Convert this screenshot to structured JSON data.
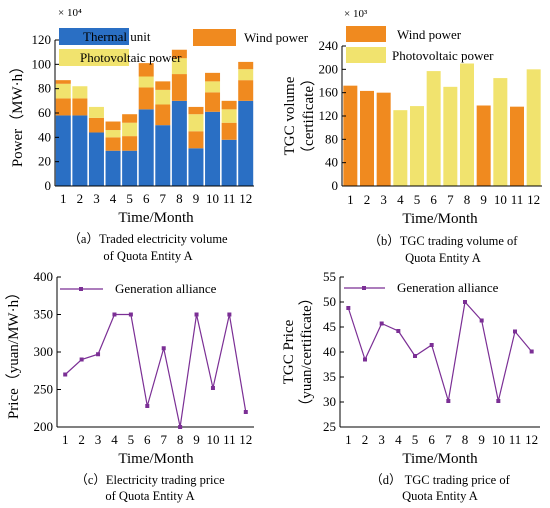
{
  "colors": {
    "thermal": "#2a6fc4",
    "wind": "#f08a1f",
    "pv": "#f1e36e",
    "line": "#7b2f95",
    "axis": "#000000"
  },
  "chart_data": [
    {
      "panel": "a",
      "type": "bar",
      "stacked": true,
      "categories": [
        "1",
        "2",
        "3",
        "4",
        "5",
        "6",
        "7",
        "8",
        "9",
        "10",
        "11",
        "12"
      ],
      "series": [
        {
          "name": "Thermal unit",
          "color_key": "thermal",
          "values": [
            58,
            58,
            44,
            29,
            29,
            63,
            50,
            70,
            31,
            61,
            38,
            70
          ]
        },
        {
          "name": "Wind power",
          "color_key": "wind",
          "values": [
            14,
            14,
            12,
            11,
            12,
            18,
            17,
            22,
            14,
            16,
            14,
            17
          ]
        },
        {
          "name": "Photovoltaic power",
          "color_key": "pv",
          "values": [
            12,
            10,
            9,
            6,
            11,
            9,
            12,
            13,
            14,
            9,
            11,
            9
          ]
        },
        {
          "name": "",
          "color_key": "wind",
          "values": [
            3,
            0,
            0,
            7,
            7,
            11,
            7,
            7,
            6,
            7,
            7,
            6
          ]
        }
      ],
      "ylim": [
        0,
        120
      ],
      "yticks": [
        0,
        20,
        40,
        60,
        80,
        100,
        120
      ],
      "exponent_label": "× 10⁴",
      "ylabel": "Power（MW·h）",
      "xlabel": "Time/Month",
      "caption_line1": "（a）Traded electricity volume",
      "caption_line2": "of Quota Entity A",
      "legend_left": [
        "Thermal unit",
        "Photovoltaic power"
      ],
      "legend_right": [
        "Wind power"
      ]
    },
    {
      "panel": "b",
      "type": "bar",
      "categories": [
        "1",
        "2",
        "3",
        "4",
        "5",
        "6",
        "7",
        "8",
        "9",
        "10",
        "11",
        "12"
      ],
      "values": [
        172,
        163,
        160,
        130,
        137,
        197,
        170,
        210,
        138,
        185,
        136,
        200
      ],
      "bar_color_keys": [
        "wind",
        "wind",
        "wind",
        "pv",
        "pv",
        "pv",
        "pv",
        "pv",
        "wind",
        "pv",
        "wind",
        "pv"
      ],
      "ylim": [
        0,
        240
      ],
      "yticks": [
        0,
        40,
        80,
        120,
        160,
        200,
        240
      ],
      "exponent_label": "× 10³",
      "ylabel_line1": "TGC volume",
      "ylabel_line2": "（certificate）",
      "xlabel": "Time/Month",
      "caption_line1": "（b）TGC trading volume of",
      "caption_line2": "Quota Entity A",
      "legend": [
        "Wind power",
        "Photovoltaic power"
      ]
    },
    {
      "panel": "c",
      "type": "line",
      "x": [
        1,
        2,
        3,
        4,
        5,
        6,
        7,
        8,
        9,
        10,
        11,
        12
      ],
      "series": [
        {
          "name": "Generation alliance",
          "values": [
            270,
            290,
            297,
            350,
            350,
            228,
            305,
            200,
            350,
            252,
            350,
            220
          ]
        }
      ],
      "ylim": [
        200,
        400
      ],
      "yticks": [
        200,
        250,
        300,
        350,
        400
      ],
      "ylabel": "Price（yuan/MW·h）",
      "xlabel": "Time/Month",
      "caption_line1": "（c）Electricity trading price",
      "caption_line2": "of Quota Entity A"
    },
    {
      "panel": "d",
      "type": "line",
      "x": [
        1,
        2,
        3,
        4,
        5,
        6,
        7,
        8,
        9,
        10,
        11,
        12
      ],
      "series": [
        {
          "name": "Generation alliance",
          "values": [
            48.8,
            38.5,
            45.7,
            44.2,
            39.2,
            41.4,
            30.2,
            50.0,
            46.3,
            30.2,
            44.1,
            40.1
          ]
        }
      ],
      "ylim": [
        25,
        55
      ],
      "yticks": [
        25,
        30,
        35,
        40,
        45,
        50,
        55
      ],
      "ylabel_line1": "TGC Price",
      "ylabel_line2": "（yuan/certificate）",
      "xlabel": "Time/Month",
      "caption_line1": "（d） TGC trading price of",
      "caption_line2": "Quota Entity A"
    }
  ]
}
